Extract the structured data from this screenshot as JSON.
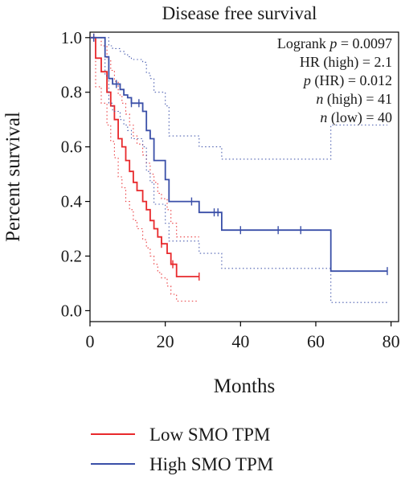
{
  "chart_data": {
    "type": "line",
    "title": "Disease free survival",
    "xlabel": "Months",
    "ylabel": "Percent survival",
    "xlim": [
      0,
      82
    ],
    "ylim": [
      -0.04,
      1.02
    ],
    "xticks": [
      0,
      20,
      40,
      60,
      80
    ],
    "yticks": [
      0.0,
      0.2,
      0.4,
      0.6,
      0.8,
      1.0
    ],
    "xtick_labels": [
      "0",
      "20",
      "40",
      "60",
      "80"
    ],
    "ytick_labels": [
      "0.0",
      "0.2",
      "0.4",
      "0.6",
      "0.8",
      "1.0"
    ],
    "grid": false,
    "stats": [
      "Logrank p = 0.0097",
      "HR (high) = 2.1",
      "p (HR) = 0.012",
      "n (high) = 41",
      "n (low) = 40"
    ],
    "series": [
      {
        "name": "Low SMO TPM",
        "color": "#e8292c",
        "step_x": [
          0,
          1.5,
          3,
          4.5,
          5.5,
          6.5,
          7.5,
          8.5,
          9.5,
          10.5,
          11.5,
          12.5,
          14,
          15,
          16,
          17,
          18,
          19,
          20.5,
          21.5,
          23,
          29
        ],
        "step_y": [
          1.0,
          0.925,
          0.875,
          0.8,
          0.75,
          0.7,
          0.63,
          0.6,
          0.55,
          0.51,
          0.47,
          0.44,
          0.4,
          0.37,
          0.33,
          0.3,
          0.27,
          0.245,
          0.21,
          0.17,
          0.125,
          0.125
        ],
        "censor_x": [
          1,
          19,
          22,
          29
        ],
        "ci_upper_y": [
          1.0,
          1.0,
          0.97,
          0.92,
          0.88,
          0.84,
          0.79,
          0.76,
          0.72,
          0.68,
          0.64,
          0.61,
          0.57,
          0.54,
          0.5,
          0.47,
          0.43,
          0.41,
          0.37,
          0.32,
          0.27,
          0.27
        ],
        "ci_lower_y": [
          1.0,
          0.82,
          0.76,
          0.68,
          0.62,
          0.56,
          0.49,
          0.45,
          0.4,
          0.37,
          0.33,
          0.3,
          0.26,
          0.23,
          0.2,
          0.17,
          0.14,
          0.12,
          0.09,
          0.06,
          0.035,
          0.035
        ]
      },
      {
        "name": "High SMO TPM",
        "color": "#3a4fa8",
        "step_x": [
          0,
          4,
          5,
          6,
          8,
          9,
          10,
          11,
          12,
          14,
          15,
          16,
          17,
          20,
          21,
          25,
          29,
          35,
          64,
          79
        ],
        "step_y": [
          1.0,
          0.93,
          0.85,
          0.83,
          0.81,
          0.79,
          0.78,
          0.76,
          0.76,
          0.73,
          0.66,
          0.63,
          0.55,
          0.48,
          0.4,
          0.4,
          0.36,
          0.295,
          0.145,
          0.145
        ],
        "censor_x": [
          1,
          7,
          11,
          13,
          27,
          33,
          34,
          40,
          50,
          56,
          79
        ],
        "ci_upper_y": [
          1.0,
          1.0,
          0.97,
          0.96,
          0.95,
          0.94,
          0.93,
          0.92,
          0.92,
          0.91,
          0.87,
          0.85,
          0.8,
          0.75,
          0.64,
          0.64,
          0.6,
          0.555,
          0.68,
          0.68
        ],
        "ci_lower_y": [
          1.0,
          0.86,
          0.76,
          0.73,
          0.7,
          0.68,
          0.66,
          0.63,
          0.63,
          0.6,
          0.51,
          0.47,
          0.39,
          0.32,
          0.255,
          0.255,
          0.21,
          0.155,
          0.03,
          0.03
        ]
      }
    ]
  },
  "legend": {
    "items": [
      {
        "label": "Low SMO TPM",
        "color": "#e8292c"
      },
      {
        "label": "High SMO TPM",
        "color": "#3a4fa8"
      }
    ]
  }
}
